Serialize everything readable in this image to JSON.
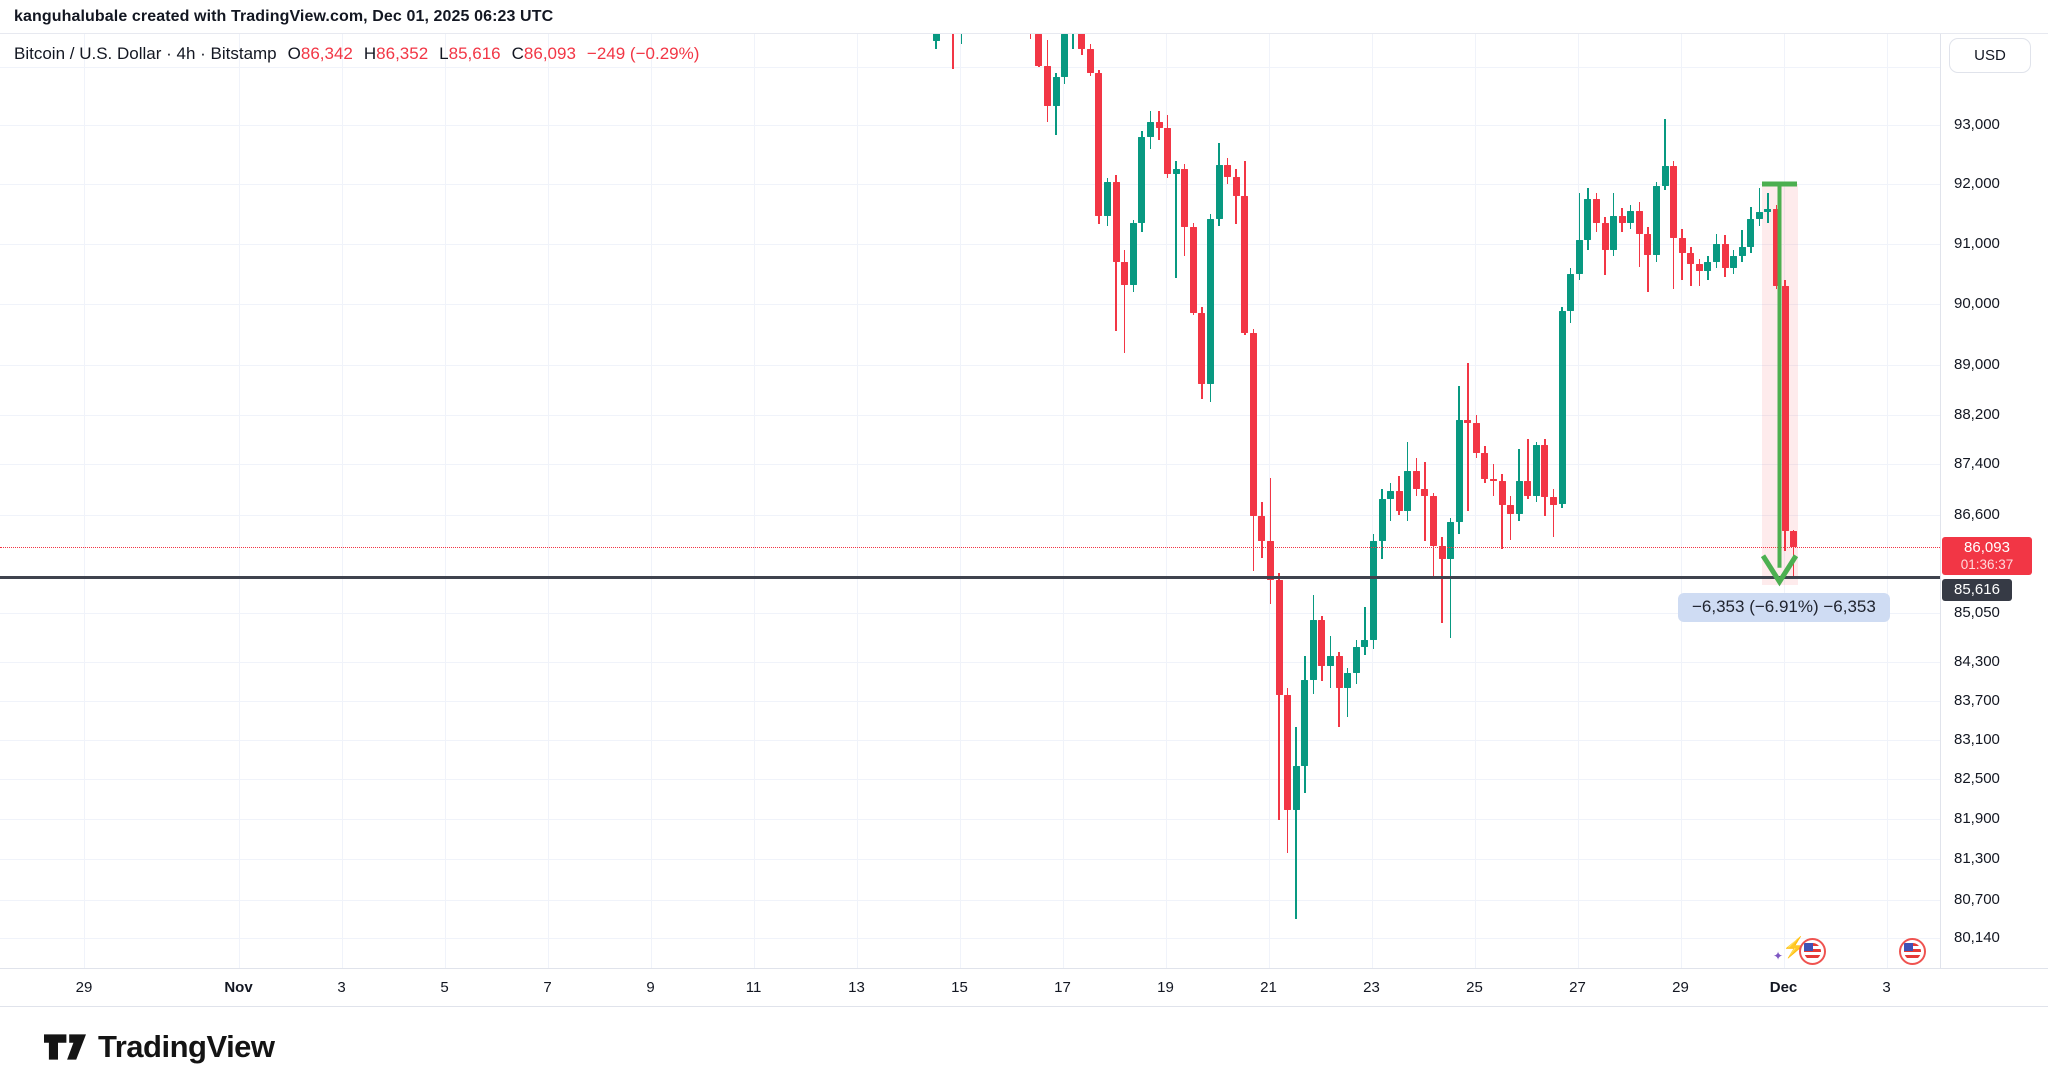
{
  "attribution": "kanguhalubale created with TradingView.com, Dec 01, 2025 06:23 UTC",
  "legend": {
    "symbol": "Bitcoin / U.S. Dollar · 4h · Bitstamp",
    "ohlc": [
      {
        "k": "O",
        "v": "86,342"
      },
      {
        "k": "H",
        "v": "86,352"
      },
      {
        "k": "L",
        "v": "85,616"
      },
      {
        "k": "C",
        "v": "86,093"
      }
    ],
    "change": "−249 (−0.29%)"
  },
  "price_axis": {
    "currency": "USD",
    "ticks": [
      {
        "price": 94000,
        "label": ""
      },
      {
        "price": 93000,
        "label": "93,000"
      },
      {
        "price": 92000,
        "label": "92,000"
      },
      {
        "price": 91000,
        "label": "91,000"
      },
      {
        "price": 90000,
        "label": "90,000"
      },
      {
        "price": 89000,
        "label": "89,000"
      },
      {
        "price": 88200,
        "label": "88,200"
      },
      {
        "price": 87400,
        "label": "87,400"
      },
      {
        "price": 86600,
        "label": "86,600"
      },
      {
        "price": 85050,
        "label": "85,050"
      },
      {
        "price": 84300,
        "label": "84,300"
      },
      {
        "price": 83700,
        "label": "83,700"
      },
      {
        "price": 83100,
        "label": "83,100"
      },
      {
        "price": 82500,
        "label": "82,500"
      },
      {
        "price": 81900,
        "label": "81,900"
      },
      {
        "price": 81300,
        "label": "81,300"
      },
      {
        "price": 80700,
        "label": "80,700"
      },
      {
        "price": 80140,
        "label": "80,140"
      }
    ],
    "current": {
      "label": "86,093",
      "countdown": "01:36:37",
      "price": 86093
    },
    "level": {
      "label": "85,616",
      "price": 85616
    }
  },
  "timeline": [
    {
      "label": "29",
      "d": 0,
      "bold": false
    },
    {
      "label": "Nov",
      "d": 3,
      "bold": true
    },
    {
      "label": "3",
      "d": 5,
      "bold": false
    },
    {
      "label": "5",
      "d": 7,
      "bold": false
    },
    {
      "label": "7",
      "d": 9,
      "bold": false
    },
    {
      "label": "9",
      "d": 11,
      "bold": false
    },
    {
      "label": "11",
      "d": 13,
      "bold": false
    },
    {
      "label": "13",
      "d": 15,
      "bold": false
    },
    {
      "label": "15",
      "d": 17,
      "bold": false
    },
    {
      "label": "17",
      "d": 19,
      "bold": false
    },
    {
      "label": "19",
      "d": 21,
      "bold": false
    },
    {
      "label": "21",
      "d": 23,
      "bold": false
    },
    {
      "label": "23",
      "d": 25,
      "bold": false
    },
    {
      "label": "25",
      "d": 27,
      "bold": false
    },
    {
      "label": "27",
      "d": 29,
      "bold": false
    },
    {
      "label": "29",
      "d": 31,
      "bold": false
    },
    {
      "label": "Dec",
      "d": 33,
      "bold": true
    },
    {
      "label": "3",
      "d": 35,
      "bold": false
    }
  ],
  "annotations": {
    "measure_label": "−6,353 (−6.91%) −6,353",
    "arrow": {
      "from_price": 92000,
      "to_price": 85616,
      "color": "#4caf50"
    },
    "band": {
      "from_price": 92000,
      "to_price": 85616
    },
    "support_line_price": 85616,
    "current_price_line": 86093,
    "event_icons": [
      {
        "name": "us-economic-event",
        "sparkle": true
      },
      {
        "name": "us-economic-event",
        "sparkle": false
      }
    ]
  },
  "footer": {
    "brand": "TradingView"
  },
  "chart_data": {
    "type": "candlestick",
    "title": "Bitcoin / U.S. Dollar",
    "interval": "4h",
    "exchange": "Bitstamp",
    "scale": "log",
    "legend_position": "top-left",
    "grid": true,
    "up_color": "#089981",
    "down_color": "#f23645",
    "y_axis_currency": "USD",
    "y_range_visible": [
      80000,
      94600
    ],
    "x_range_visible": [
      "Oct 29",
      "Dec 3"
    ],
    "first_candle_time": "Nov 14 12:00 UTC",
    "candle_interval_hours": 4,
    "columns": [
      "open",
      "high",
      "low",
      "close"
    ],
    "candles": [
      [
        94450,
        94800,
        94300,
        94700
      ],
      [
        94700,
        95100,
        94600,
        95000
      ],
      [
        95000,
        95050,
        93970,
        94620
      ],
      [
        94620,
        95000,
        94400,
        94930
      ],
      [
        94930,
        95300,
        94800,
        95150
      ],
      [
        95150,
        95500,
        95000,
        95400
      ],
      [
        95400,
        95600,
        95100,
        95250
      ],
      [
        95250,
        95450,
        94900,
        95050
      ],
      [
        95050,
        95350,
        94850,
        95200
      ],
      [
        95200,
        95400,
        94900,
        95100
      ],
      [
        95100,
        95250,
        94700,
        94850
      ],
      [
        94850,
        94950,
        94480,
        94560
      ],
      [
        94560,
        94700,
        93990,
        94010
      ],
      [
        94010,
        94460,
        93060,
        93330
      ],
      [
        93330,
        93900,
        92840,
        93830
      ],
      [
        93830,
        94700,
        93700,
        94560
      ],
      [
        94560,
        95000,
        94300,
        94820
      ],
      [
        94820,
        94900,
        94200,
        94300
      ],
      [
        94300,
        94400,
        93850,
        93900
      ],
      [
        93900,
        93950,
        91330,
        91470
      ],
      [
        91470,
        92100,
        91300,
        92030
      ],
      [
        92030,
        92150,
        89560,
        90700
      ],
      [
        90700,
        90900,
        89200,
        90320
      ],
      [
        90320,
        91400,
        90200,
        91350
      ],
      [
        91350,
        92900,
        91200,
        92800
      ],
      [
        92800,
        93250,
        92600,
        93050
      ],
      [
        93050,
        93250,
        92750,
        92950
      ],
      [
        92950,
        93180,
        92100,
        92170
      ],
      [
        92170,
        92400,
        90440,
        92250
      ],
      [
        92250,
        92350,
        90800,
        91280
      ],
      [
        91280,
        91350,
        89830,
        89850
      ],
      [
        89850,
        89950,
        88460,
        88690
      ],
      [
        88690,
        91500,
        88400,
        91420
      ],
      [
        91420,
        92690,
        91300,
        92320
      ],
      [
        92320,
        92450,
        92000,
        92130
      ],
      [
        92130,
        92250,
        91330,
        91810
      ],
      [
        91810,
        92390,
        89500,
        89530
      ],
      [
        89530,
        89600,
        85710,
        86580
      ],
      [
        86580,
        86800,
        85920,
        86180
      ],
      [
        86180,
        87190,
        85190,
        85570
      ],
      [
        85570,
        85680,
        81890,
        83780
      ],
      [
        83780,
        83900,
        81390,
        82040
      ],
      [
        82040,
        83300,
        80420,
        82700
      ],
      [
        82700,
        84380,
        82300,
        84010
      ],
      [
        84010,
        85340,
        83800,
        84950
      ],
      [
        84950,
        85000,
        84000,
        84230
      ],
      [
        84230,
        84700,
        83900,
        84380
      ],
      [
        84380,
        84450,
        83300,
        83890
      ],
      [
        83890,
        84200,
        83450,
        84120
      ],
      [
        84120,
        84630,
        83950,
        84520
      ],
      [
        84520,
        85140,
        84400,
        84630
      ],
      [
        84630,
        86300,
        84500,
        86180
      ],
      [
        86180,
        87000,
        85900,
        86850
      ],
      [
        86850,
        87100,
        86500,
        86970
      ],
      [
        86970,
        87210,
        86600,
        86660
      ],
      [
        86660,
        87760,
        86500,
        87300
      ],
      [
        87300,
        87500,
        86900,
        87000
      ],
      [
        87000,
        87440,
        86180,
        86900
      ],
      [
        86900,
        86950,
        85620,
        86100
      ],
      [
        86100,
        86250,
        84900,
        85900
      ],
      [
        85900,
        86550,
        84660,
        86480
      ],
      [
        86480,
        88660,
        86300,
        88110
      ],
      [
        88110,
        89030,
        86660,
        88060
      ],
      [
        88060,
        88200,
        87500,
        87590
      ],
      [
        87590,
        87700,
        87100,
        87160
      ],
      [
        87160,
        87400,
        86900,
        87140
      ],
      [
        87140,
        87250,
        86050,
        86760
      ],
      [
        86760,
        86900,
        86200,
        86610
      ],
      [
        86610,
        87650,
        86500,
        87140
      ],
      [
        87140,
        87800,
        86850,
        86900
      ],
      [
        86900,
        87760,
        86800,
        87710
      ],
      [
        87710,
        87800,
        86570,
        86880
      ],
      [
        86880,
        87000,
        86250,
        86760
      ],
      [
        86760,
        89950,
        86700,
        89890
      ],
      [
        89890,
        90600,
        89700,
        90500
      ],
      [
        90500,
        91850,
        90400,
        91060
      ],
      [
        91060,
        91940,
        90900,
        91750
      ],
      [
        91750,
        91850,
        91200,
        91350
      ],
      [
        91350,
        91450,
        90480,
        90900
      ],
      [
        90900,
        91860,
        90800,
        91460
      ],
      [
        91460,
        91600,
        91200,
        91350
      ],
      [
        91350,
        91650,
        91250,
        91550
      ],
      [
        91550,
        91700,
        90620,
        91170
      ],
      [
        91170,
        91280,
        90200,
        90820
      ],
      [
        90820,
        92030,
        90700,
        91970
      ],
      [
        91970,
        93100,
        91900,
        92310
      ],
      [
        92310,
        92400,
        90250,
        91100
      ],
      [
        91100,
        91250,
        90400,
        90850
      ],
      [
        90850,
        90950,
        90300,
        90660
      ],
      [
        90660,
        90750,
        90300,
        90550
      ],
      [
        90550,
        90800,
        90400,
        90700
      ],
      [
        90700,
        91160,
        90600,
        91000
      ],
      [
        91000,
        91150,
        90450,
        90600
      ],
      [
        90600,
        90900,
        90500,
        90800
      ],
      [
        90800,
        91230,
        90700,
        90950
      ],
      [
        90950,
        91620,
        90850,
        91420
      ],
      [
        91420,
        91940,
        91300,
        91530
      ],
      [
        91530,
        91860,
        91350,
        91580
      ],
      [
        91580,
        91650,
        90250,
        90300
      ],
      [
        90300,
        90400,
        86020,
        86342
      ],
      [
        86342,
        86352,
        85616,
        86093
      ]
    ]
  }
}
